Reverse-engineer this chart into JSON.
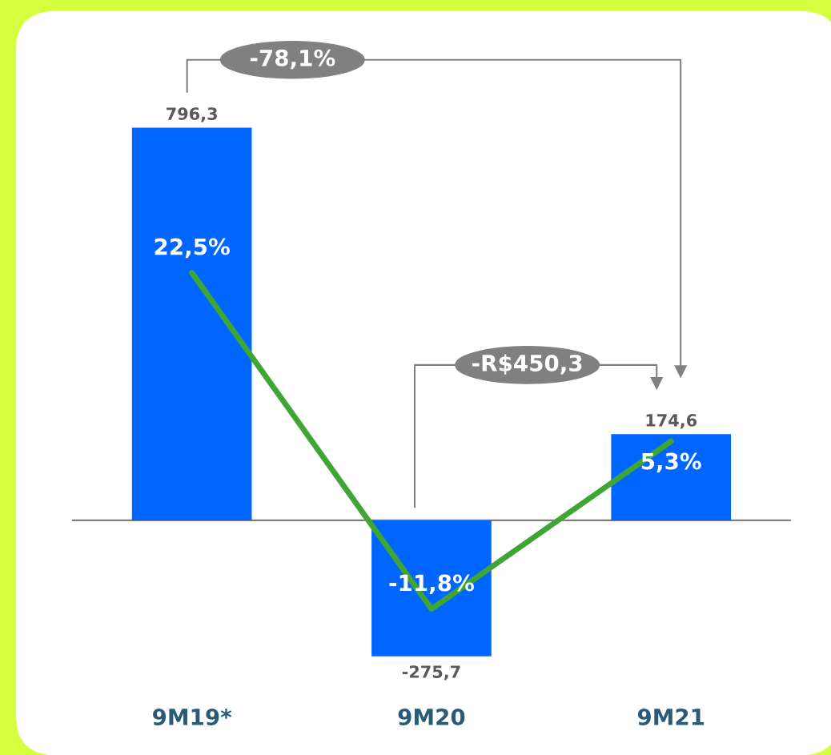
{
  "chart_data": {
    "type": "bar",
    "categories": [
      "9M19*",
      "9M20",
      "9M21"
    ],
    "data_labels": true,
    "grid": false,
    "legend": false,
    "tick_labels": "x",
    "annotations": [
      "-78,1%",
      "-R$450,3"
    ],
    "series": [
      {
        "color": "#0066ff",
        "values": [
          796.3,
          -275.7,
          174.6
        ],
        "value_labels": [
          "796,3",
          "-275,7",
          "174,6"
        ]
      },
      {
        "type": "line",
        "axis": "y2",
        "color": "#3fa535",
        "values": [
          22.5,
          -11.8,
          5.3
        ],
        "value_labels": [
          "22,5%",
          "-11,8%",
          "5,3%"
        ]
      }
    ]
  }
}
